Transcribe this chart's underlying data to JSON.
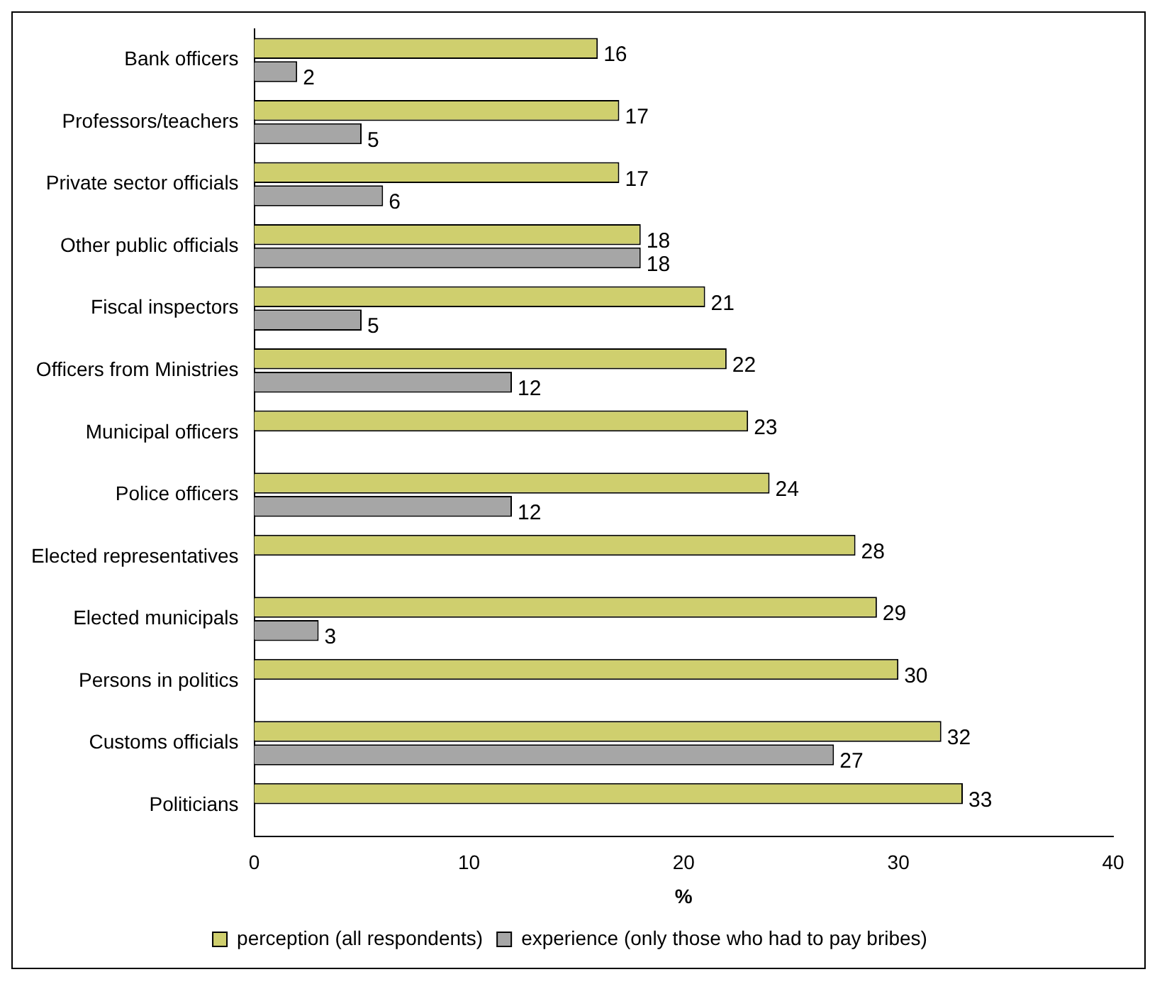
{
  "chart_data": {
    "type": "bar",
    "orientation": "horizontal",
    "xlabel": "%",
    "categories": [
      "Bank officers",
      "Professors/teachers",
      "Private sector officials",
      "Other public officials",
      "Fiscal inspectors",
      "Officers from Ministries",
      "Municipal officers",
      "Police officers",
      "Elected representatives",
      "Elected municipals",
      "Persons in politics",
      "Customs officials",
      "Politicians"
    ],
    "series": [
      {
        "name": "perception (all respondents)",
        "color": "#cfcf6e",
        "values": [
          16,
          17,
          17,
          18,
          21,
          22,
          23,
          24,
          28,
          29,
          30,
          32,
          33
        ]
      },
      {
        "name": "experience (only those who had to pay bribes)",
        "color": "#a6a6a6",
        "values": [
          2,
          5,
          6,
          18,
          5,
          12,
          null,
          12,
          null,
          3,
          null,
          27,
          null
        ]
      }
    ],
    "xlim": [
      0,
      40
    ],
    "xticks": [
      0,
      10,
      20,
      30,
      40
    ],
    "grid": false,
    "legend": "bottom",
    "data_labels": true
  }
}
